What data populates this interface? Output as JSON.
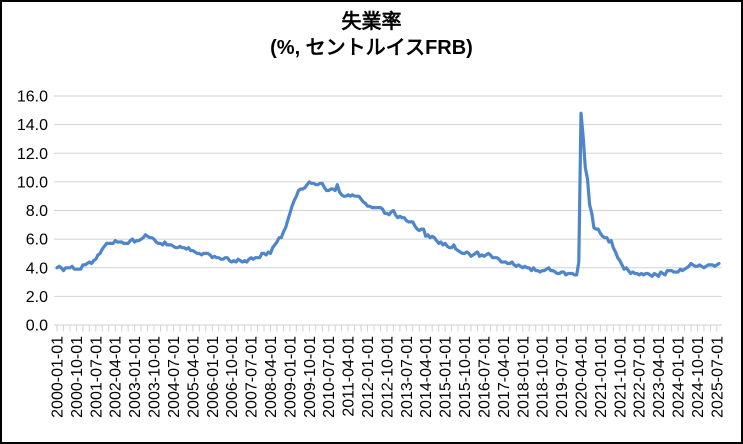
{
  "title": {
    "line1": "失業率",
    "line2": "(%, セントルイスFRB)"
  },
  "chart_data": {
    "type": "line",
    "title": "失業率",
    "subtitle": "(%, セントルイスFRB)",
    "x_start": "2000-01-01",
    "x_end": "2025-08-01",
    "x_frequency": "monthly",
    "values": [
      4.0,
      4.1,
      4.0,
      3.8,
      4.0,
      4.0,
      4.0,
      4.1,
      3.9,
      3.9,
      3.9,
      3.9,
      4.2,
      4.2,
      4.3,
      4.4,
      4.3,
      4.5,
      4.6,
      4.9,
      5.0,
      5.3,
      5.5,
      5.7,
      5.7,
      5.7,
      5.7,
      5.9,
      5.8,
      5.8,
      5.8,
      5.7,
      5.7,
      5.7,
      5.9,
      6.0,
      5.8,
      5.9,
      5.9,
      6.0,
      6.1,
      6.3,
      6.2,
      6.1,
      6.1,
      6.0,
      5.8,
      5.7,
      5.7,
      5.6,
      5.8,
      5.6,
      5.6,
      5.6,
      5.5,
      5.4,
      5.4,
      5.5,
      5.4,
      5.4,
      5.3,
      5.4,
      5.2,
      5.2,
      5.1,
      5.0,
      5.0,
      4.9,
      5.0,
      5.0,
      5.0,
      4.9,
      4.7,
      4.8,
      4.7,
      4.7,
      4.6,
      4.6,
      4.7,
      4.7,
      4.5,
      4.4,
      4.5,
      4.4,
      4.6,
      4.5,
      4.4,
      4.5,
      4.4,
      4.6,
      4.7,
      4.6,
      4.7,
      4.7,
      4.7,
      5.0,
      5.0,
      4.9,
      5.1,
      5.0,
      5.4,
      5.6,
      5.8,
      6.1,
      6.1,
      6.5,
      6.8,
      7.3,
      7.8,
      8.3,
      8.7,
      9.0,
      9.4,
      9.5,
      9.5,
      9.6,
      9.8,
      10.0,
      9.9,
      9.9,
      9.8,
      9.8,
      9.9,
      9.9,
      9.6,
      9.4,
      9.4,
      9.5,
      9.5,
      9.4,
      9.8,
      9.3,
      9.1,
      9.0,
      9.0,
      9.1,
      9.0,
      9.1,
      9.0,
      9.0,
      9.0,
      8.8,
      8.6,
      8.5,
      8.3,
      8.3,
      8.2,
      8.2,
      8.2,
      8.2,
      8.2,
      8.1,
      7.8,
      7.8,
      7.7,
      7.9,
      8.0,
      7.7,
      7.5,
      7.6,
      7.5,
      7.5,
      7.3,
      7.2,
      7.2,
      7.2,
      6.9,
      6.7,
      6.6,
      6.7,
      6.7,
      6.2,
      6.3,
      6.1,
      6.2,
      6.1,
      5.9,
      5.7,
      5.8,
      5.6,
      5.7,
      5.5,
      5.4,
      5.4,
      5.6,
      5.3,
      5.2,
      5.1,
      5.0,
      5.0,
      5.1,
      5.0,
      4.8,
      4.9,
      5.0,
      5.1,
      4.8,
      4.9,
      4.8,
      4.9,
      5.0,
      4.9,
      4.7,
      4.7,
      4.7,
      4.6,
      4.4,
      4.4,
      4.4,
      4.3,
      4.3,
      4.4,
      4.2,
      4.1,
      4.2,
      4.1,
      4.0,
      4.1,
      4.0,
      4.0,
      3.8,
      4.0,
      3.8,
      3.8,
      3.7,
      3.8,
      3.8,
      3.9,
      4.0,
      3.8,
      3.8,
      3.7,
      3.6,
      3.6,
      3.7,
      3.7,
      3.5,
      3.6,
      3.6,
      3.6,
      3.5,
      3.5,
      4.4,
      14.8,
      13.2,
      11.0,
      10.2,
      8.4,
      7.8,
      6.8,
      6.7,
      6.7,
      6.4,
      6.2,
      6.1,
      6.1,
      5.8,
      5.9,
      5.4,
      5.1,
      4.7,
      4.5,
      4.2,
      3.9,
      4.0,
      3.8,
      3.6,
      3.7,
      3.6,
      3.6,
      3.5,
      3.6,
      3.5,
      3.6,
      3.6,
      3.5,
      3.4,
      3.6,
      3.5,
      3.4,
      3.7,
      3.6,
      3.5,
      3.8,
      3.8,
      3.8,
      3.7,
      3.7,
      3.7,
      3.9,
      3.8,
      3.9,
      4.0,
      4.1,
      4.3,
      4.2,
      4.1,
      4.1,
      4.2,
      4.1,
      4.0,
      4.1,
      4.2,
      4.2,
      4.2,
      4.1,
      4.2,
      4.3
    ],
    "x_tick_labels": [
      "2000-01-01",
      "2000-10-01",
      "2001-07-01",
      "2002-04-01",
      "2003-01-01",
      "2003-10-01",
      "2004-07-01",
      "2005-04-01",
      "2006-01-01",
      "2006-10-01",
      "2007-07-01",
      "2008-04-01",
      "2009-01-01",
      "2009-10-01",
      "2010-07-01",
      "2011-04-01",
      "2012-01-01",
      "2012-10-01",
      "2013-07-01",
      "2014-04-01",
      "2015-01-01",
      "2015-10-01",
      "2016-07-01",
      "2017-04-01",
      "2018-01-01",
      "2018-10-01",
      "2019-07-01",
      "2020-04-01",
      "2021-01-01",
      "2021-10-01",
      "2022-07-01",
      "2023-04-01",
      "2024-01-01",
      "2024-10-01",
      "2025-07-01"
    ],
    "x_label_every_months": 9,
    "x_minor_tick_every_months": 3,
    "y_ticks": [
      0,
      2,
      4,
      6,
      8,
      10,
      12,
      14,
      16
    ],
    "y_tick_labels": [
      "0.0",
      "2.0",
      "4.0",
      "6.0",
      "8.0",
      "10.0",
      "12.0",
      "14.0",
      "16.0"
    ],
    "ylim": [
      0,
      16
    ],
    "grid": true,
    "legend": "none",
    "line_color": "#4F86C9",
    "grid_color": "#D2D2D2",
    "text_color": "#000000"
  }
}
